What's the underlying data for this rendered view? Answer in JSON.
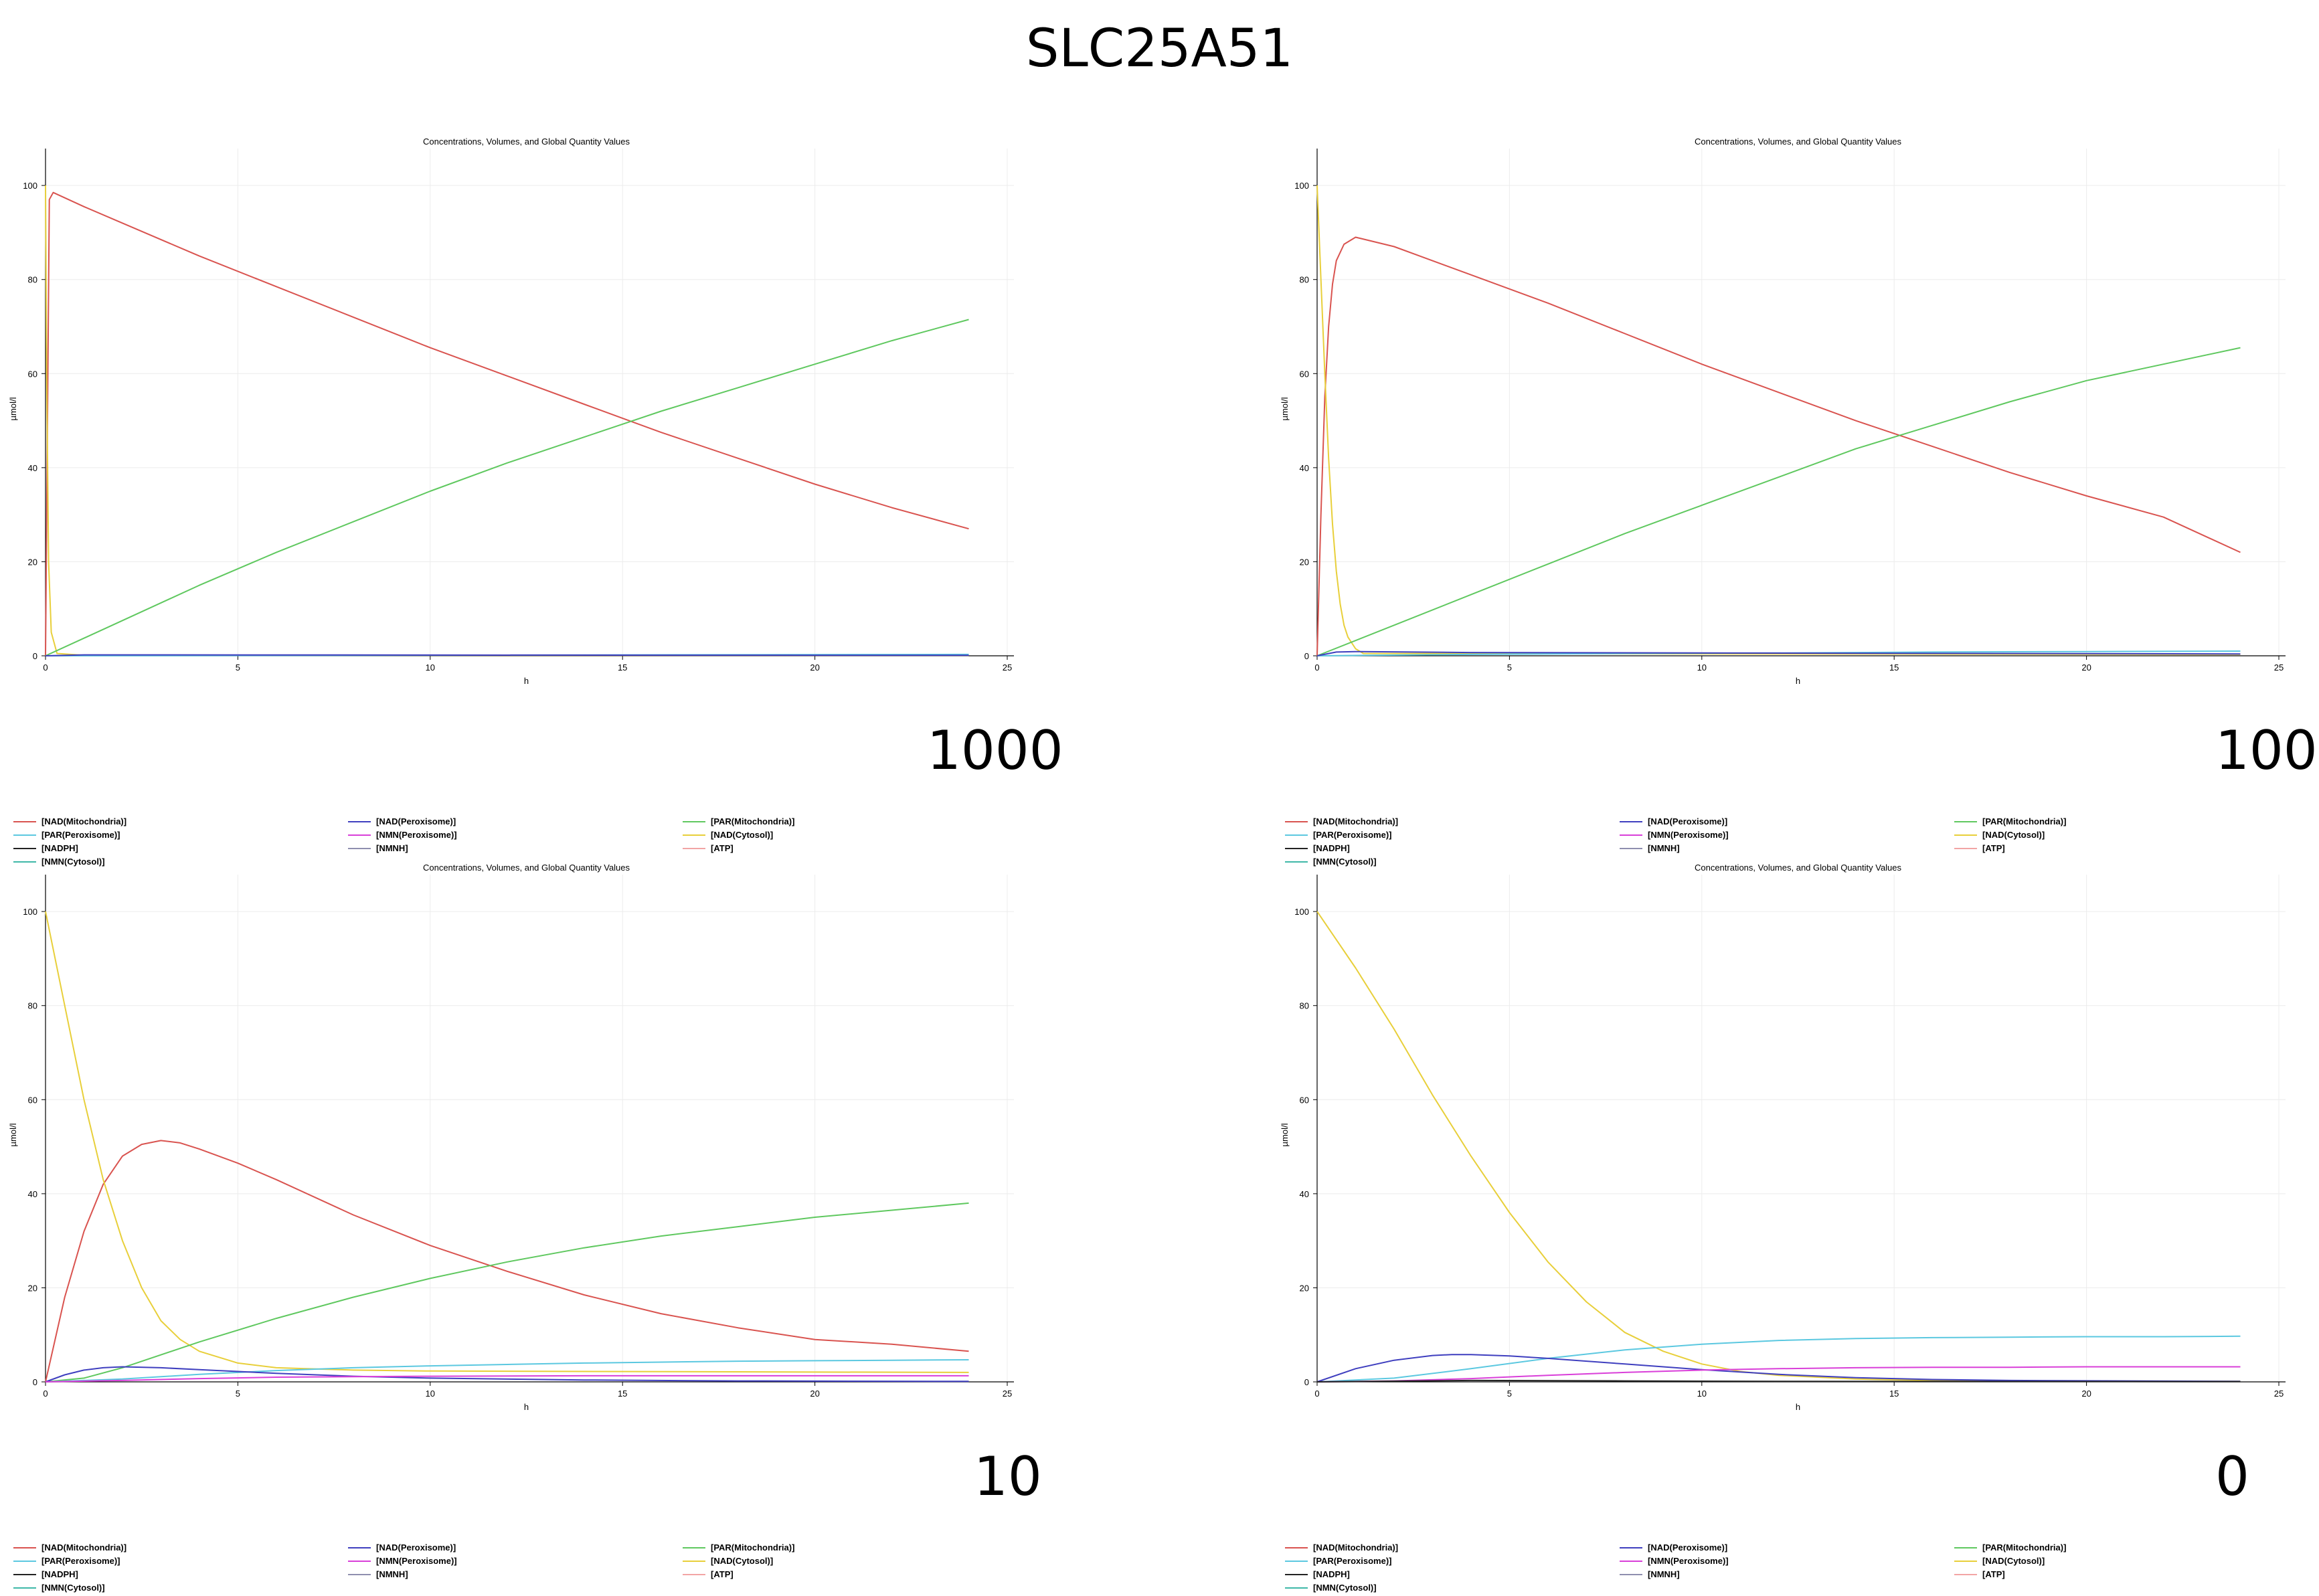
{
  "page": {
    "title": "SLC25A51"
  },
  "legend_entries": [
    {
      "name": "[NAD(Mitochondria)]",
      "color": "#d9534f"
    },
    {
      "name": "[NAD(Peroxisome)]",
      "color": "#3f3fbf"
    },
    {
      "name": "[PAR(Mitochondria)]",
      "color": "#5fc85f"
    },
    {
      "name": "[PAR(Peroxisome)]",
      "color": "#5bc8e0"
    },
    {
      "name": "[NMN(Peroxisome)]",
      "color": "#d93fd9"
    },
    {
      "name": "[NAD(Cytosol)]",
      "color": "#e8cf3a"
    },
    {
      "name": "[NADPH]",
      "color": "#222222"
    },
    {
      "name": "[NMNH]",
      "color": "#8f8faf"
    },
    {
      "name": "[ATP]",
      "color": "#f2a5a5"
    },
    {
      "name": "[NMN(Cytosol)]",
      "color": "#3fb8a8"
    }
  ],
  "chart_data": [
    {
      "type": "line",
      "panel_label": "1000",
      "title": "Concentrations, Volumes, and Global Quantity Values",
      "xlabel": "h",
      "ylabel": "µmol/l",
      "xlim": [
        0,
        25
      ],
      "ylim": [
        0,
        105
      ],
      "xticks": [
        "0",
        "5",
        "10",
        "15",
        "20",
        "25"
      ],
      "yticks": [
        "0",
        "20",
        "40",
        "60",
        "80",
        "100"
      ],
      "grid": true,
      "legend_position": "bottom",
      "series": [
        {
          "name": "[NAD(Mitochondria)]",
          "color": "#d9534f",
          "x": [
            0,
            0.1,
            0.2,
            1,
            2,
            4,
            6,
            8,
            10,
            12,
            14,
            16,
            18,
            20,
            22,
            24
          ],
          "y": [
            0,
            97,
            98.5,
            95.5,
            92,
            85,
            78.5,
            72,
            65.5,
            59.5,
            53.5,
            47.5,
            42,
            36.5,
            31.5,
            27
          ]
        },
        {
          "name": "[NAD(Cytosol)]",
          "color": "#e8cf3a",
          "x": [
            0,
            0.03,
            0.08,
            0.15,
            0.3,
            1,
            24
          ],
          "y": [
            100,
            60,
            20,
            5,
            0.5,
            0.1,
            0.1
          ]
        },
        {
          "name": "[PAR(Mitochondria)]",
          "color": "#5fc85f",
          "x": [
            0,
            2,
            4,
            6,
            8,
            10,
            12,
            14,
            16,
            18,
            20,
            22,
            24
          ],
          "y": [
            0,
            7.5,
            15,
            22,
            28.5,
            35,
            41,
            46.5,
            52,
            57,
            62,
            67,
            71.5
          ]
        },
        {
          "name": "[PAR(Peroxisome)]",
          "color": "#5bc8e0",
          "x": [
            0,
            24
          ],
          "y": [
            0,
            0.3
          ]
        },
        {
          "name": "[NAD(Peroxisome)]",
          "color": "#3f3fbf",
          "x": [
            0,
            1,
            24
          ],
          "y": [
            0,
            0.2,
            0.1
          ]
        }
      ]
    },
    {
      "type": "line",
      "panel_label": "100",
      "title": "Concentrations, Volumes, and Global Quantity Values",
      "xlabel": "h",
      "ylabel": "µmol/l",
      "xlim": [
        0,
        25
      ],
      "ylim": [
        0,
        105
      ],
      "xticks": [
        "0",
        "5",
        "10",
        "15",
        "20",
        "25"
      ],
      "yticks": [
        "0",
        "20",
        "40",
        "60",
        "80",
        "100"
      ],
      "grid": true,
      "legend_position": "bottom",
      "series": [
        {
          "name": "[NAD(Mitochondria)]",
          "color": "#d9534f",
          "x": [
            0,
            0.1,
            0.2,
            0.3,
            0.4,
            0.5,
            0.7,
            1,
            2,
            4,
            6,
            8,
            10,
            12,
            14,
            16,
            18,
            20,
            22,
            24
          ],
          "y": [
            0,
            30,
            55,
            70,
            79,
            84,
            87.5,
            89,
            87,
            81,
            75,
            68.5,
            62,
            56,
            50,
            44.5,
            39,
            34,
            29.5,
            22
          ]
        },
        {
          "name": "[NAD(Cytosol)]",
          "color": "#e8cf3a",
          "x": [
            0,
            0.1,
            0.2,
            0.3,
            0.4,
            0.5,
            0.6,
            0.7,
            0.8,
            1,
            1.2,
            24
          ],
          "y": [
            100,
            80,
            60,
            42,
            28,
            18,
            11,
            6.5,
            4,
            1.5,
            0.5,
            0.3
          ]
        },
        {
          "name": "[PAR(Mitochondria)]",
          "color": "#5fc85f",
          "x": [
            0,
            2,
            4,
            6,
            8,
            10,
            12,
            14,
            16,
            18,
            20,
            22,
            24
          ],
          "y": [
            0,
            6.5,
            13,
            19.5,
            26,
            32,
            38,
            44,
            49,
            54,
            58.5,
            62,
            65.5
          ]
        },
        {
          "name": "[PAR(Peroxisome)]",
          "color": "#5bc8e0",
          "x": [
            0,
            4,
            8,
            12,
            16,
            20,
            24
          ],
          "y": [
            0,
            0.3,
            0.5,
            0.6,
            0.8,
            0.9,
            1
          ]
        },
        {
          "name": "[NAD(Peroxisome)]",
          "color": "#3f3fbf",
          "x": [
            0,
            0.5,
            1,
            4,
            24
          ],
          "y": [
            0,
            0.8,
            0.9,
            0.7,
            0.4
          ]
        }
      ]
    },
    {
      "type": "line",
      "panel_label": "10",
      "title": "Concentrations, Volumes, and Global Quantity Values",
      "xlabel": "h",
      "ylabel": "µmol/l",
      "xlim": [
        0,
        25
      ],
      "ylim": [
        0,
        105
      ],
      "xticks": [
        "0",
        "5",
        "10",
        "15",
        "20",
        "25"
      ],
      "yticks": [
        "0",
        "20",
        "40",
        "60",
        "80",
        "100"
      ],
      "grid": true,
      "legend_position": "bottom",
      "series": [
        {
          "name": "[NAD(Mitochondria)]",
          "color": "#d9534f",
          "x": [
            0,
            0.5,
            1,
            1.5,
            2,
            2.5,
            3,
            3.5,
            4,
            5,
            6,
            8,
            10,
            12,
            14,
            16,
            18,
            20,
            22,
            24
          ],
          "y": [
            0,
            18,
            32,
            42,
            48,
            50.5,
            51.3,
            50.8,
            49.5,
            46.5,
            43,
            35.5,
            29,
            23.5,
            18.5,
            14.5,
            11.5,
            9,
            8,
            6.5
          ]
        },
        {
          "name": "[NAD(Cytosol)]",
          "color": "#e8cf3a",
          "x": [
            0,
            0.5,
            1,
            1.5,
            2,
            2.5,
            3,
            3.5,
            4,
            5,
            6,
            8,
            10,
            24
          ],
          "y": [
            100,
            80,
            60,
            43,
            30,
            20,
            13,
            9,
            6.5,
            4,
            3,
            2.5,
            2.3,
            2
          ]
        },
        {
          "name": "[PAR(Mitochondria)]",
          "color": "#5fc85f",
          "x": [
            0,
            1,
            2,
            4,
            6,
            8,
            10,
            12,
            14,
            16,
            18,
            20,
            22,
            24
          ],
          "y": [
            0,
            0.8,
            3,
            8.5,
            13.5,
            18,
            22,
            25.5,
            28.5,
            31,
            33,
            35,
            36.5,
            38
          ]
        },
        {
          "name": "[PAR(Peroxisome)]",
          "color": "#5bc8e0",
          "x": [
            0,
            2,
            4,
            6,
            8,
            10,
            12,
            14,
            16,
            18,
            20,
            22,
            24
          ],
          "y": [
            0,
            0.6,
            1.6,
            2.4,
            3,
            3.4,
            3.7,
            4,
            4.2,
            4.4,
            4.5,
            4.6,
            4.7
          ]
        },
        {
          "name": "[NAD(Peroxisome)]",
          "color": "#3f3fbf",
          "x": [
            0,
            0.5,
            1,
            1.5,
            2,
            3,
            4,
            6,
            8,
            10,
            14,
            18,
            24
          ],
          "y": [
            0,
            1.5,
            2.5,
            3,
            3.2,
            3,
            2.6,
            1.8,
            1.2,
            0.8,
            0.4,
            0.2,
            0.1
          ]
        },
        {
          "name": "[NMN(Peroxisome)]",
          "color": "#d93fd9",
          "x": [
            0,
            2,
            4,
            6,
            8,
            10,
            14,
            24
          ],
          "y": [
            0,
            0.3,
            0.7,
            1,
            1.1,
            1.2,
            1.3,
            1.3
          ]
        }
      ]
    },
    {
      "type": "line",
      "panel_label": "0",
      "title": "Concentrations, Volumes, and Global Quantity Values",
      "xlabel": "h",
      "ylabel": "µmol/l",
      "xlim": [
        0,
        25
      ],
      "ylim": [
        0,
        105
      ],
      "xticks": [
        "0",
        "5",
        "10",
        "15",
        "20",
        "25"
      ],
      "yticks": [
        "0",
        "20",
        "40",
        "60",
        "80",
        "100"
      ],
      "grid": true,
      "legend_position": "bottom",
      "series": [
        {
          "name": "[NAD(Cytosol)]",
          "color": "#e8cf3a",
          "x": [
            0,
            1,
            2,
            3,
            4,
            5,
            6,
            7,
            8,
            9,
            10,
            11,
            12,
            14,
            16,
            18,
            20,
            24
          ],
          "y": [
            100,
            88,
            75,
            61,
            48,
            36,
            25.5,
            17,
            10.5,
            6.5,
            3.8,
            2.2,
            1.4,
            0.6,
            0.3,
            0.15,
            0.1,
            0.1
          ]
        },
        {
          "name": "[PAR(Peroxisome)]",
          "color": "#5bc8e0",
          "x": [
            0,
            2,
            4,
            6,
            8,
            10,
            12,
            14,
            16,
            18,
            20,
            22,
            24
          ],
          "y": [
            0,
            0.8,
            2.8,
            5,
            6.8,
            8,
            8.8,
            9.2,
            9.4,
            9.5,
            9.6,
            9.6,
            9.7
          ]
        },
        {
          "name": "[NAD(Peroxisome)]",
          "color": "#3f3fbf",
          "x": [
            0,
            1,
            2,
            3,
            3.5,
            4,
            5,
            6,
            8,
            10,
            12,
            14,
            16,
            18,
            24
          ],
          "y": [
            0,
            2.8,
            4.6,
            5.6,
            5.8,
            5.8,
            5.5,
            5,
            3.8,
            2.6,
            1.6,
            0.9,
            0.5,
            0.3,
            0.1
          ]
        },
        {
          "name": "[NMN(Peroxisome)]",
          "color": "#d93fd9",
          "x": [
            0,
            2,
            4,
            6,
            8,
            10,
            12,
            14,
            16,
            18,
            20,
            24
          ],
          "y": [
            0,
            0.2,
            0.7,
            1.4,
            2,
            2.5,
            2.8,
            3,
            3.1,
            3.1,
            3.2,
            3.2
          ]
        },
        {
          "name": "[NADPH]",
          "color": "#222222",
          "x": [
            0,
            4,
            8,
            12,
            24
          ],
          "y": [
            0,
            0.3,
            0.2,
            0.1,
            0.05
          ]
        }
      ]
    }
  ]
}
